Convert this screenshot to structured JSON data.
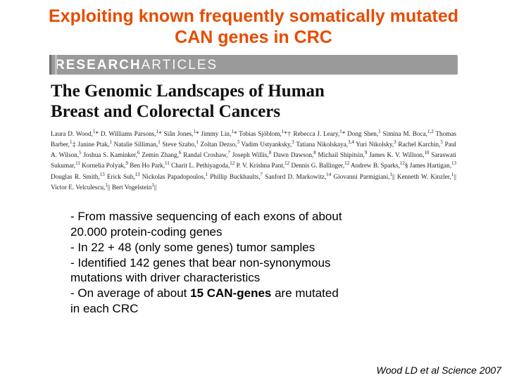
{
  "title_line1": "Exploiting known frequently somatically mutated",
  "title_line2": "CAN genes in CRC",
  "banner_light": "RESEARCH",
  "banner_bold": "ARTICLES",
  "article_title_l1": "The Genomic Landscapes of Human",
  "article_title_l2": "Breast and Colorectal Cancers",
  "authors_html": "Laura D. Wood,<sup>1</sup>* D. Williams Parsons,<sup>1</sup>* Siân Jones,<sup>1</sup>* Jimmy Lin,<sup>1</sup>* Tobias Sjöblom,<sup>1</sup>*† Rebecca J. Leary,<sup>1</sup>* Dong Shen,<sup>1</sup> Simina M. Boca,<sup>1,2</sup> Thomas Barber,<sup>1</sup>‡ Janine Ptak,<sup>1</sup> Natalie Silliman,<sup>1</sup> Steve Szabo,<sup>1</sup> Zoltan Dezso,<sup>3</sup> Vadim Ustyanksky,<sup>3</sup> Tatiana Nikolskaya,<sup>3,4</sup> Yuri Nikolsky,<sup>3</sup> Rachel Karchin,<sup>5</sup> Paul A. Wilson,<sup>5</sup> Joshua S. Kaminker,<sup>6</sup> Zemin Zhang,<sup>6</sup> Randal Croshaw,<sup>7</sup> Joseph Willis,<sup>8</sup> Dawn Dawson,<sup>8</sup> Michail Shipitsin,<sup>9</sup> James K. V. Willson,<sup>10</sup> Saraswati Sukumar,<sup>11</sup> Kornelia Polyak,<sup>9</sup> Ben Ho Park,<sup>11</sup> Charit L. Pethiyagoda,<sup>12</sup> P. V. Krishna Pant,<sup>12</sup> Dennis G. Ballinger,<sup>12</sup> Andrew B. Sparks,<sup>12</sup>§ James Hartigan,<sup>13</sup> Douglas R. Smith,<sup>13</sup> Erick Suh,<sup>13</sup> Nickolas Papadopoulos,<sup>1</sup> Phillip Buckhaults,<sup>7</sup> Sanford D. Markowitz,<sup>14</sup> Giovanni Parmigiani,<sup>1</sup>|| Kenneth W. Kinzler,<sup>1</sup>|| Victor E. Velculescu,<sup>1</sup>|| Bert Vogelstein<sup>1</sup>||",
  "bullet1a": "- From massive sequencing of each exons of about",
  "bullet1b": "20.000 protein-coding genes",
  "bullet2": "- In 22 + 48 (only some genes) tumor samples",
  "bullet3a": "- Identified 142 genes that bear non-synonymous",
  "bullet3b": "mutations with driver characteristics",
  "bullet4a": "- On average of about ",
  "bullet4bold": "15 CAN-genes",
  "bullet4b": " are mutated",
  "bullet4c": "in each CRC",
  "citation": "Wood LD et al Science 2007",
  "colors": {
    "title": "#e74c00",
    "banner_bg": "#9a9a9a"
  }
}
